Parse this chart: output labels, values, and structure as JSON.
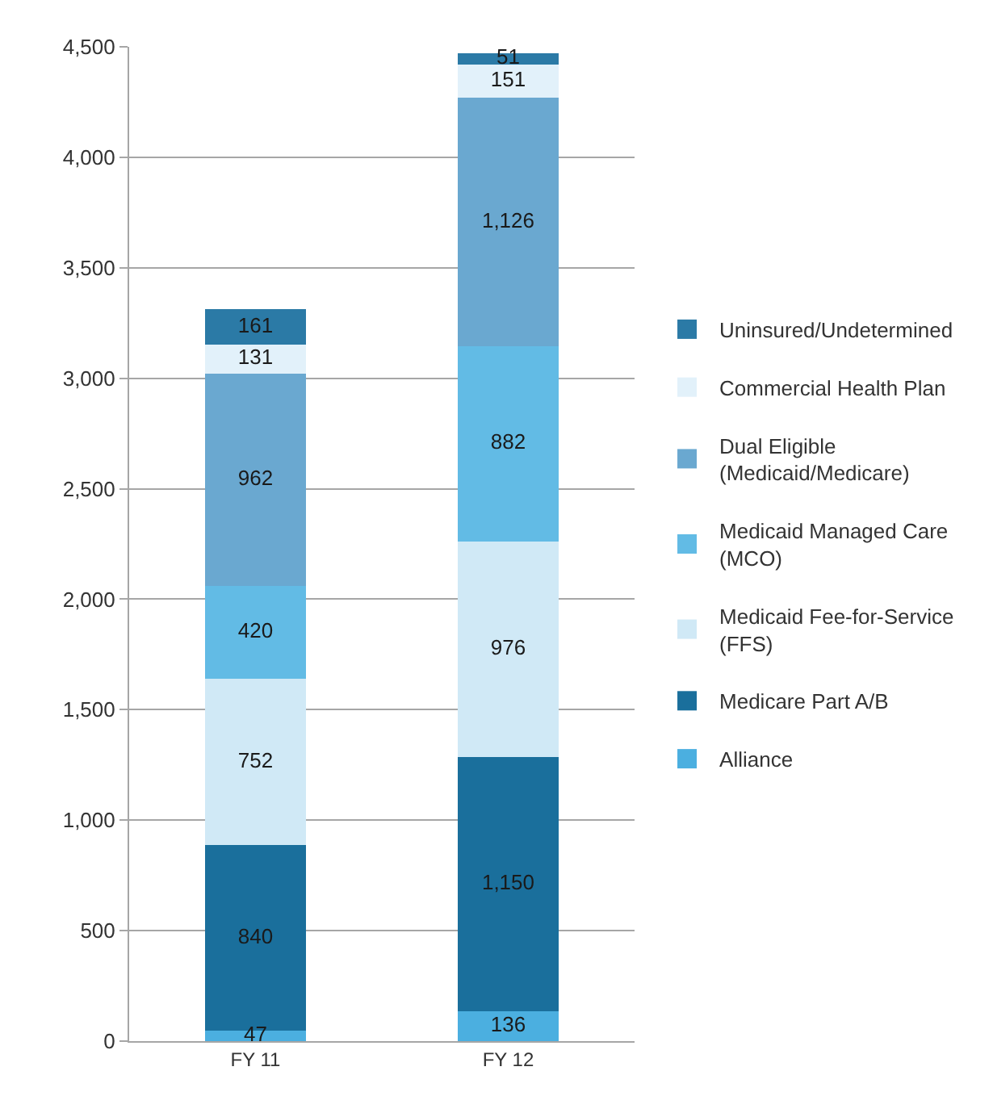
{
  "chart_data": {
    "type": "bar",
    "stacked": true,
    "categories": [
      "FY 11",
      "FY 12"
    ],
    "series": [
      {
        "name": "Alliance",
        "color": "#4bafe0",
        "values": [
          47,
          136
        ],
        "value_labels": [
          "47",
          "136"
        ]
      },
      {
        "name": "Medicare Part A/B",
        "color": "#1a6f9c",
        "values": [
          840,
          1150
        ],
        "value_labels": [
          "840",
          "1,150"
        ]
      },
      {
        "name": "Medicaid Fee-for-Service (FFS)",
        "color": "#d0e9f6",
        "values": [
          752,
          976
        ],
        "value_labels": [
          "752",
          "976"
        ]
      },
      {
        "name": "Medicaid Managed Care (MCO)",
        "color": "#62bbe5",
        "values": [
          420,
          882
        ],
        "value_labels": [
          "420",
          "882"
        ]
      },
      {
        "name": "Dual Eligible (Medicaid/Medicare)",
        "color": "#6aa8d0",
        "values": [
          962,
          1126
        ],
        "value_labels": [
          "962",
          "1,126"
        ]
      },
      {
        "name": "Commercial Health Plan",
        "color": "#e2f1fa",
        "values": [
          131,
          151
        ],
        "value_labels": [
          "131",
          "151"
        ]
      },
      {
        "name": "Uninsured/Undetermined",
        "color": "#2b7aa6",
        "values": [
          161,
          51
        ],
        "value_labels": [
          "161",
          "51"
        ]
      }
    ],
    "ylim": [
      0,
      4500
    ],
    "yticks": [
      0,
      500,
      {
        "value": 1000,
        "label": "1,000"
      },
      {
        "value": 1500,
        "label": "1,500"
      },
      {
        "value": 2000,
        "label": "2,000"
      },
      {
        "value": 2500,
        "label": "2,500"
      },
      {
        "value": 3000,
        "label": "3,000"
      },
      {
        "value": 3500,
        "label": "3,500"
      },
      {
        "value": 4000,
        "label": "4,000"
      },
      {
        "value": 4500,
        "label": "4,500"
      }
    ],
    "grid": "y",
    "legend": "right"
  }
}
